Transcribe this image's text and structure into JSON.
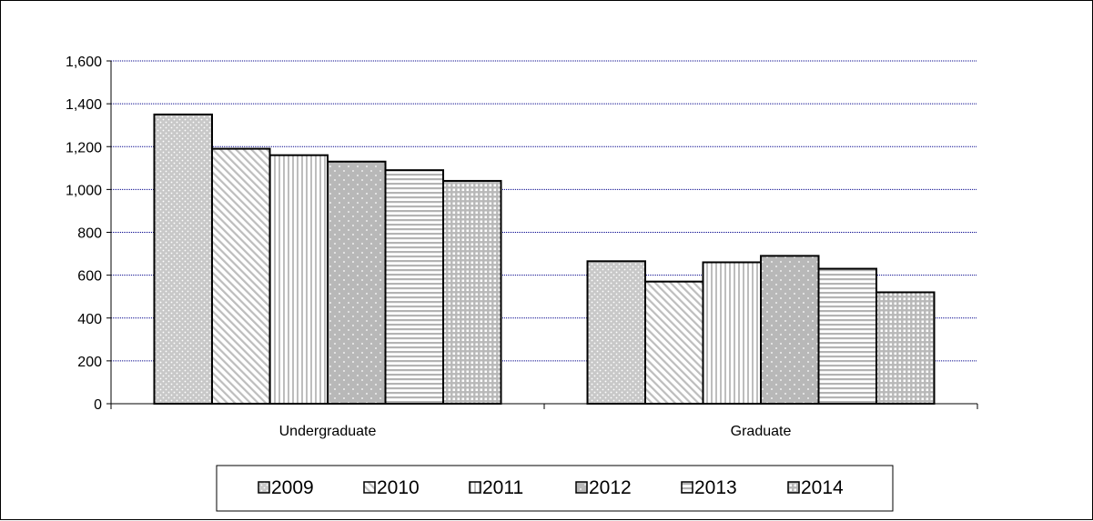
{
  "chart_data": {
    "type": "bar",
    "categories": [
      "Undergraduate",
      "Graduate"
    ],
    "series": [
      {
        "name": "2009",
        "values": [
          1350,
          665
        ]
      },
      {
        "name": "2010",
        "values": [
          1190,
          570
        ]
      },
      {
        "name": "2011",
        "values": [
          1160,
          660
        ]
      },
      {
        "name": "2012",
        "values": [
          1130,
          690
        ]
      },
      {
        "name": "2013",
        "values": [
          1090,
          630
        ]
      },
      {
        "name": "2014",
        "values": [
          1040,
          520
        ]
      }
    ],
    "yticks": [
      "0",
      "200",
      "400",
      "600",
      "800",
      "1,000",
      "1,200",
      "1,400",
      "1,600"
    ],
    "ylim": [
      0,
      1600
    ],
    "grid": true,
    "gridline_color": "#00008b",
    "legend_position": "bottom",
    "patterns": [
      "dots",
      "diagonal",
      "vertical",
      "sparse-dots",
      "horizontal",
      "grid"
    ]
  }
}
